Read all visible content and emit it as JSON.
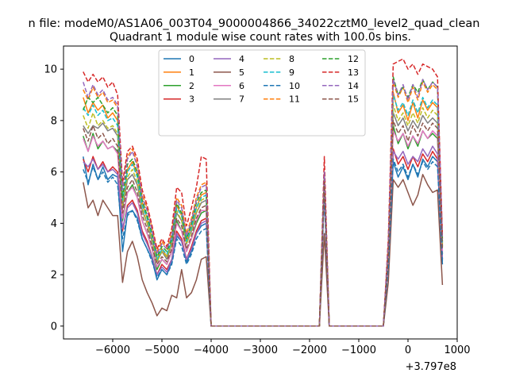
{
  "chart_data": {
    "type": "line",
    "suptitle": "n file: modeM0/AS1A06_003T04_9000004866_34022cztM0_level2_quad_clean",
    "title": "Quadrant 1 module wise count rates with 100.0s bins.",
    "xlabel": "",
    "ylabel": "",
    "x_offset_label": "+3.797e8",
    "xlim": [
      -7000,
      1000
    ],
    "ylim": [
      -0.5,
      10.9
    ],
    "xticks": [
      -6000,
      -5000,
      -4000,
      -3000,
      -2000,
      -1000,
      0,
      1000
    ],
    "xtick_labels": [
      "−6000",
      "−5000",
      "−4000",
      "−3000",
      "−2000",
      "−1000",
      "0",
      "1000"
    ],
    "yticks": [
      0,
      2,
      4,
      6,
      8,
      10
    ],
    "ytick_labels": [
      "0",
      "2",
      "4",
      "6",
      "8",
      "10"
    ],
    "grid": false,
    "legend_position": "upper-center",
    "legend_columns": 4,
    "x": [
      -6600,
      -6500,
      -6400,
      -6300,
      -6200,
      -6100,
      -6000,
      -5900,
      -5800,
      -5700,
      -5600,
      -5500,
      -5400,
      -5300,
      -5200,
      -5100,
      -5000,
      -4900,
      -4800,
      -4700,
      -4600,
      -4500,
      -4400,
      -4300,
      -4200,
      -4100,
      -4000,
      -3900,
      -3800,
      -1800,
      -1700,
      -1600,
      -1500,
      -500,
      -400,
      -300,
      -200,
      -100,
      0,
      100,
      200,
      300,
      400,
      500,
      600,
      700
    ],
    "series": [
      {
        "name": "0",
        "color": "#1f77b4",
        "style": "solid",
        "values": [
          6.6,
          5.5,
          6.3,
          5.7,
          6.2,
          5.7,
          5.9,
          5.8,
          2.9,
          4.4,
          4.5,
          4.2,
          3.4,
          3.0,
          2.6,
          1.8,
          2.2,
          2.0,
          2.5,
          3.5,
          3.3,
          2.5,
          2.9,
          3.6,
          3.9,
          4.0,
          0.0,
          0.0,
          0.0,
          0.0,
          5.3,
          0.0,
          0.0,
          0.0,
          2.5,
          6.4,
          5.8,
          6.2,
          5.7,
          6.3,
          5.8,
          6.5,
          6.2,
          6.6,
          6.4,
          2.4
        ]
      },
      {
        "name": "1",
        "color": "#ff7f0e",
        "style": "solid",
        "values": [
          8.9,
          8.3,
          8.7,
          8.4,
          8.6,
          8.1,
          8.3,
          8.0,
          4.6,
          6.1,
          6.4,
          5.9,
          4.8,
          4.2,
          3.4,
          2.6,
          3.0,
          2.7,
          3.3,
          4.7,
          4.3,
          3.3,
          3.9,
          4.6,
          5.1,
          5.2,
          0.0,
          0.0,
          0.0,
          0.0,
          5.8,
          0.0,
          0.0,
          0.0,
          3.0,
          9.1,
          8.3,
          8.6,
          8.0,
          8.7,
          8.1,
          8.8,
          8.4,
          8.7,
          8.5,
          3.2
        ]
      },
      {
        "name": "2",
        "color": "#2ca02c",
        "style": "solid",
        "values": [
          7.4,
          6.8,
          7.5,
          6.9,
          7.2,
          6.9,
          7.0,
          6.8,
          4.1,
          5.2,
          5.5,
          5.0,
          4.1,
          3.6,
          3.0,
          2.2,
          2.6,
          2.4,
          2.9,
          4.1,
          3.7,
          2.9,
          3.4,
          4.0,
          4.4,
          4.5,
          0.0,
          0.0,
          0.0,
          0.0,
          5.5,
          0.0,
          0.0,
          0.0,
          2.7,
          7.8,
          7.1,
          7.5,
          6.9,
          7.4,
          7.0,
          7.6,
          7.3,
          7.5,
          7.3,
          2.8
        ]
      },
      {
        "name": "3",
        "color": "#d62728",
        "style": "solid",
        "values": [
          6.5,
          6.0,
          6.6,
          6.1,
          6.4,
          6.0,
          6.2,
          6.0,
          3.7,
          4.7,
          4.9,
          4.5,
          3.7,
          3.3,
          2.7,
          2.0,
          2.4,
          2.2,
          2.6,
          3.7,
          3.4,
          2.6,
          3.1,
          3.7,
          4.1,
          4.2,
          0.0,
          0.0,
          0.0,
          0.0,
          5.3,
          0.0,
          0.0,
          0.0,
          2.5,
          6.9,
          6.3,
          6.6,
          6.1,
          6.6,
          6.2,
          6.7,
          6.4,
          6.8,
          6.5,
          2.6
        ]
      },
      {
        "name": "4",
        "color": "#9467bd",
        "style": "solid",
        "values": [
          6.4,
          6.2,
          6.5,
          6.1,
          6.3,
          6.0,
          6.1,
          5.9,
          3.8,
          4.6,
          4.8,
          4.4,
          3.6,
          3.2,
          2.7,
          2.0,
          2.3,
          2.1,
          2.6,
          3.6,
          3.3,
          2.6,
          3.0,
          3.6,
          4.0,
          4.1,
          0.0,
          0.0,
          0.0,
          0.0,
          5.2,
          0.0,
          0.0,
          0.0,
          2.4,
          6.8,
          6.5,
          6.8,
          6.3,
          6.6,
          6.4,
          6.9,
          6.6,
          7.0,
          6.7,
          2.6
        ]
      },
      {
        "name": "5",
        "color": "#8c564b",
        "style": "solid",
        "values": [
          5.6,
          4.6,
          4.9,
          4.3,
          4.9,
          4.6,
          4.3,
          4.3,
          1.7,
          2.9,
          3.3,
          2.7,
          1.8,
          1.3,
          0.9,
          0.4,
          0.7,
          0.6,
          1.2,
          1.1,
          2.2,
          1.1,
          1.3,
          1.8,
          2.6,
          2.7,
          0.0,
          0.0,
          0.0,
          0.0,
          3.6,
          0.0,
          0.0,
          0.0,
          1.7,
          5.7,
          5.4,
          5.7,
          5.2,
          4.7,
          5.1,
          5.9,
          5.5,
          5.2,
          5.3,
          1.6
        ]
      },
      {
        "name": "6",
        "color": "#e377c2",
        "style": "solid",
        "values": [
          7.3,
          6.8,
          7.4,
          7.0,
          7.2,
          6.9,
          7.0,
          6.7,
          4.2,
          5.2,
          5.4,
          5.0,
          4.1,
          3.6,
          3.0,
          2.3,
          2.6,
          2.4,
          2.9,
          4.0,
          3.7,
          2.9,
          3.4,
          4.1,
          4.5,
          4.5,
          0.0,
          0.0,
          0.0,
          0.0,
          5.5,
          0.0,
          0.0,
          0.0,
          2.7,
          7.6,
          7.2,
          7.5,
          7.0,
          7.4,
          7.1,
          7.6,
          7.3,
          7.6,
          7.4,
          2.9
        ]
      },
      {
        "name": "7",
        "color": "#7f7f7f",
        "style": "solid",
        "values": [
          7.8,
          7.5,
          7.8,
          7.7,
          7.9,
          7.6,
          7.7,
          7.4,
          4.6,
          5.7,
          5.9,
          5.5,
          4.5,
          4.0,
          3.3,
          2.5,
          2.9,
          2.6,
          3.2,
          4.4,
          4.1,
          3.2,
          3.7,
          4.4,
          4.8,
          4.9,
          0.0,
          0.0,
          0.0,
          0.0,
          5.7,
          0.0,
          0.0,
          0.0,
          2.9,
          8.3,
          7.8,
          8.1,
          7.6,
          8.0,
          7.7,
          8.2,
          7.9,
          8.1,
          7.9,
          3.1
        ]
      },
      {
        "name": "8",
        "color": "#bcbd22",
        "style": "dashed",
        "values": [
          8.2,
          7.7,
          8.3,
          7.8,
          8.0,
          7.7,
          7.8,
          7.5,
          4.7,
          5.8,
          6.1,
          5.6,
          4.6,
          4.0,
          3.4,
          2.5,
          2.9,
          2.7,
          3.2,
          4.5,
          4.1,
          3.2,
          3.7,
          4.4,
          4.9,
          5.0,
          0.0,
          0.0,
          0.0,
          0.0,
          5.7,
          0.0,
          0.0,
          0.0,
          2.9,
          8.6,
          8.0,
          8.3,
          7.8,
          8.3,
          7.9,
          8.5,
          8.1,
          8.4,
          8.2,
          3.1
        ]
      },
      {
        "name": "9",
        "color": "#17becf",
        "style": "dashed",
        "values": [
          8.5,
          8.2,
          8.6,
          8.2,
          8.4,
          8.0,
          8.1,
          7.8,
          4.9,
          6.0,
          6.3,
          5.8,
          4.7,
          4.2,
          3.5,
          2.6,
          3.0,
          2.8,
          3.3,
          4.6,
          4.3,
          3.3,
          3.8,
          4.6,
          5.0,
          5.1,
          0.0,
          0.0,
          0.0,
          0.0,
          5.8,
          0.0,
          0.0,
          0.0,
          3.0,
          9.0,
          8.4,
          8.7,
          8.2,
          8.8,
          8.3,
          8.9,
          8.5,
          8.8,
          8.6,
          3.2
        ]
      },
      {
        "name": "10",
        "color": "#1f77b4",
        "style": "dashed",
        "values": [
          6.1,
          5.6,
          6.2,
          5.7,
          6.0,
          5.6,
          5.8,
          5.5,
          3.4,
          4.3,
          4.5,
          4.1,
          3.4,
          3.0,
          2.5,
          1.9,
          2.2,
          2.0,
          2.4,
          3.4,
          3.1,
          2.4,
          2.8,
          3.4,
          3.7,
          3.8,
          0.0,
          0.0,
          0.0,
          0.0,
          5.1,
          0.0,
          0.0,
          0.0,
          2.3,
          6.5,
          6.0,
          6.3,
          5.8,
          6.3,
          5.9,
          6.4,
          6.1,
          6.4,
          6.2,
          2.5
        ]
      },
      {
        "name": "11",
        "color": "#ff7f0e",
        "style": "dashed",
        "values": [
          9.2,
          8.8,
          9.3,
          8.9,
          9.1,
          8.7,
          8.8,
          8.5,
          5.4,
          6.6,
          6.9,
          6.3,
          5.1,
          4.6,
          3.8,
          2.9,
          3.3,
          3.0,
          3.6,
          5.0,
          4.7,
          3.6,
          4.2,
          5.0,
          5.5,
          5.6,
          0.0,
          0.0,
          0.0,
          0.0,
          6.0,
          0.0,
          0.0,
          0.0,
          3.2,
          9.5,
          8.9,
          9.3,
          8.7,
          9.3,
          8.8,
          9.5,
          9.1,
          9.4,
          9.2,
          3.4
        ]
      },
      {
        "name": "12",
        "color": "#2ca02c",
        "style": "dashed",
        "values": [
          8.4,
          8.9,
          8.7,
          8.9,
          8.6,
          8.3,
          8.5,
          8.2,
          5.0,
          6.3,
          6.5,
          6.0,
          4.9,
          4.3,
          3.6,
          2.7,
          3.1,
          2.9,
          3.4,
          4.8,
          4.4,
          3.4,
          4.0,
          4.8,
          5.2,
          5.3,
          0.0,
          0.0,
          0.0,
          0.0,
          5.9,
          0.0,
          0.0,
          0.0,
          3.1,
          9.7,
          9.0,
          9.3,
          8.9,
          9.4,
          9.1,
          9.6,
          9.2,
          9.5,
          9.3,
          3.3
        ]
      },
      {
        "name": "13",
        "color": "#d62728",
        "style": "dashed",
        "values": [
          9.9,
          9.5,
          9.8,
          9.5,
          9.7,
          9.3,
          9.5,
          9.0,
          5.6,
          6.8,
          7.0,
          6.5,
          5.3,
          4.7,
          3.9,
          3.0,
          3.4,
          3.1,
          3.8,
          5.4,
          5.2,
          3.9,
          4.6,
          5.4,
          6.6,
          6.5,
          0.0,
          0.0,
          0.0,
          0.0,
          6.6,
          0.0,
          0.0,
          0.0,
          3.4,
          10.2,
          10.3,
          10.4,
          10.0,
          10.2,
          9.8,
          10.2,
          10.1,
          10.0,
          9.7,
          3.5
        ]
      },
      {
        "name": "14",
        "color": "#9467bd",
        "style": "dashed",
        "values": [
          9.5,
          8.9,
          9.4,
          9.0,
          9.2,
          8.8,
          8.9,
          8.6,
          5.3,
          6.5,
          6.8,
          6.2,
          5.0,
          4.5,
          3.7,
          2.8,
          3.2,
          3.0,
          3.5,
          4.9,
          4.6,
          3.5,
          4.1,
          4.9,
          5.4,
          5.5,
          0.0,
          0.0,
          0.0,
          0.0,
          6.0,
          0.0,
          0.0,
          0.0,
          3.2,
          9.6,
          9.0,
          9.4,
          8.8,
          9.4,
          8.9,
          9.6,
          9.2,
          9.5,
          9.3,
          3.4
        ]
      },
      {
        "name": "15",
        "color": "#8c564b",
        "style": "dashed",
        "values": [
          7.7,
          7.2,
          7.8,
          7.3,
          7.5,
          7.1,
          7.3,
          7.0,
          4.4,
          5.4,
          5.7,
          5.2,
          4.3,
          3.8,
          3.1,
          2.4,
          2.7,
          2.5,
          3.0,
          4.2,
          3.9,
          3.0,
          3.5,
          4.2,
          4.6,
          4.7,
          0.0,
          0.0,
          0.0,
          0.0,
          5.6,
          0.0,
          0.0,
          0.0,
          2.8,
          8.0,
          7.5,
          7.8,
          7.2,
          7.8,
          7.4,
          7.9,
          7.6,
          7.9,
          7.7,
          3.0
        ]
      }
    ]
  }
}
